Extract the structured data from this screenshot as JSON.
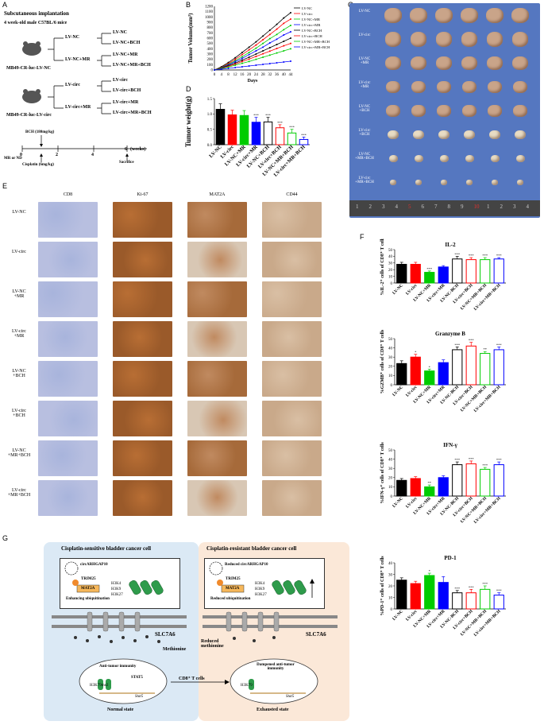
{
  "panel_labels": {
    "A": "A",
    "B": "B",
    "C": "C",
    "D": "D",
    "E": "E",
    "F": "F",
    "G": "G"
  },
  "panelA": {
    "title": "Subcutaneous implantation",
    "mice": "4 week-old male C57BL/6 mice",
    "top_group": "LV-NC",
    "top_group2": "LV-NC+MR",
    "top_branches": [
      "LV-NC",
      "LV-NC+BCH",
      "LV-NC+MR",
      "LV-NC+MR+BCH"
    ],
    "top_model": "MB49-CR-luc-LV-NC",
    "bottom_group": "LV-circ",
    "bottom_group2": "LV-circ+MR",
    "bottom_branches": [
      "LV-circ",
      "LV-circ+BCH",
      "LV-circ+MR",
      "LV-circ+MR+BCH"
    ],
    "bottom_model": "MB49-CR-luc-LV-circ",
    "bch": "BCH (180mg/kg)",
    "timeline_ticks": [
      "0",
      "2",
      "4",
      "6"
    ],
    "weeks": "(weeks)",
    "mr_nd": "MR or ND",
    "cisplatin": "Cisplatin (6mg/kg)",
    "sacrifice": "Sacrifice"
  },
  "chart_data": [
    {
      "id": "tumor-volume",
      "type": "line",
      "ylabel": "Tumor Volume(mm³)",
      "xlabel": "Days",
      "x": [
        0,
        4,
        8,
        12,
        16,
        20,
        24,
        28,
        32,
        36,
        40,
        44
      ],
      "xticks": [
        "0",
        "4",
        "8",
        "12",
        "16",
        "20",
        "24",
        "28",
        "32",
        "36",
        "40",
        "44"
      ],
      "yticks": [
        "0",
        "100",
        "200",
        "300",
        "400",
        "500",
        "600",
        "700",
        "800",
        "900",
        "1000",
        "1100",
        "1200"
      ],
      "ylim": [
        0,
        1200
      ],
      "series": [
        {
          "name": "LV-NC",
          "color": "#000000",
          "values": [
            0,
            60,
            140,
            230,
            330,
            430,
            530,
            640,
            750,
            860,
            980,
            1080
          ]
        },
        {
          "name": "LV-circ",
          "color": "#ff0000",
          "values": [
            0,
            50,
            120,
            200,
            290,
            380,
            470,
            570,
            670,
            770,
            880,
            960
          ]
        },
        {
          "name": "LV-NC+MR",
          "color": "#00cc00",
          "values": [
            0,
            45,
            105,
            175,
            250,
            330,
            410,
            500,
            590,
            670,
            760,
            840
          ]
        },
        {
          "name": "LV-circ+MR",
          "color": "#0000ff",
          "values": [
            0,
            40,
            95,
            155,
            220,
            290,
            360,
            430,
            510,
            580,
            660,
            720
          ]
        },
        {
          "name": "LV-NC+BCH",
          "color": "#000000",
          "values": [
            0,
            35,
            80,
            130,
            185,
            240,
            300,
            360,
            420,
            480,
            540,
            600
          ]
        },
        {
          "name": "LV-circ+BCH",
          "color": "#ff0000",
          "values": [
            0,
            30,
            70,
            110,
            160,
            205,
            255,
            305,
            355,
            405,
            455,
            500
          ]
        },
        {
          "name": "LV-NC+MR+BCH",
          "color": "#00cc00",
          "values": [
            0,
            25,
            55,
            90,
            125,
            160,
            200,
            240,
            280,
            320,
            360,
            400
          ]
        },
        {
          "name": "LV-circ+MR+BCH",
          "color": "#0000ff",
          "values": [
            0,
            15,
            30,
            45,
            60,
            75,
            90,
            105,
            120,
            135,
            150,
            165
          ]
        }
      ]
    },
    {
      "id": "tumor-weight",
      "type": "bar",
      "ylabel": "Tumor weight(g)",
      "categories": [
        "LV-NC",
        "LV-circ",
        "LV-NC+MR",
        "LV-circ+MR",
        "LV-NC+BCH",
        "LV-circ+BCH",
        "LV-NC+MR+BCH",
        "LV-circ+MR+BCH"
      ],
      "values": [
        1.15,
        0.97,
        0.95,
        0.73,
        0.74,
        0.55,
        0.38,
        0.17
      ],
      "errors": [
        0.18,
        0.15,
        0.16,
        0.16,
        0.15,
        0.1,
        0.12,
        0.08
      ],
      "colors": [
        "#000000",
        "#ff0000",
        "#00cc00",
        "#0000ff",
        "#000000",
        "#ff0000",
        "#00cc00",
        "#0000ff"
      ],
      "sig": [
        "",
        "",
        "",
        "***",
        "***",
        "***",
        "***",
        "***"
      ],
      "ylim": [
        0,
        1.5
      ],
      "yticks": [
        "0.0",
        "0.5",
        "1.0",
        "1.5"
      ]
    },
    {
      "id": "il2",
      "type": "bar",
      "title": "IL-2",
      "ylabel": "%IL-2⁺ cells of CD8⁺ T cells",
      "categories": [
        "LV-NC",
        "LV-circ",
        "LV-NC+MR",
        "LV-circ+MR",
        "LV-NC-BCH",
        "LV-circ+BCH",
        "LV-NC+MR+BCH",
        "LV-circ+MR+BCH"
      ],
      "values": [
        28,
        28,
        16,
        24,
        36,
        35,
        35,
        36
      ],
      "errors": [
        3,
        3,
        2,
        2,
        4,
        3,
        3,
        2
      ],
      "colors": [
        "#000000",
        "#ff0000",
        "#00cc00",
        "#0000ff",
        "#000000",
        "#ff0000",
        "#00cc00",
        "#0000ff"
      ],
      "sig": [
        "",
        "",
        "***",
        "",
        "***",
        "***",
        "***",
        "***"
      ],
      "ylim": [
        0,
        50
      ],
      "yticks": [
        "0",
        "10",
        "20",
        "30",
        "40",
        "50"
      ]
    },
    {
      "id": "granzyme",
      "type": "bar",
      "title": "Granzyme B",
      "ylabel": "%GZMB⁺ cells of CD8⁺ T cells",
      "categories": [
        "LV-NC",
        "LV-circ",
        "LV-NC+MR",
        "LV-circ+MR",
        "LV-NC-BCH",
        "LV-circ+BCH",
        "LV-NC+MR+BCH",
        "LV-circ+MR+BCH"
      ],
      "values": [
        23,
        30,
        15,
        24,
        38,
        42,
        34,
        38
      ],
      "errors": [
        3,
        3,
        2,
        3,
        3,
        4,
        2,
        3
      ],
      "colors": [
        "#000000",
        "#ff0000",
        "#00cc00",
        "#0000ff",
        "#000000",
        "#ff0000",
        "#00cc00",
        "#0000ff"
      ],
      "sig": [
        "",
        "*",
        "*",
        "",
        "***",
        "***",
        "**",
        "***"
      ],
      "ylim": [
        0,
        50
      ],
      "yticks": [
        "0",
        "10",
        "20",
        "30",
        "40",
        "50"
      ]
    },
    {
      "id": "ifng",
      "type": "bar",
      "title": "IFN-γ",
      "ylabel": "%IFN-γ⁺ cells of CD8⁺ T cells",
      "categories": [
        "LV-NC",
        "LV-circ",
        "LV-NC+MR",
        "LV-circ+MR",
        "LV-NC-BCH",
        "LV-circ+BCH",
        "LV-NC+MR+BCH",
        "LV-circ+MR+BCH"
      ],
      "values": [
        17,
        19,
        10,
        20,
        34,
        35,
        29,
        34
      ],
      "errors": [
        2,
        2,
        2,
        2,
        3,
        3,
        2,
        3
      ],
      "colors": [
        "#000000",
        "#ff0000",
        "#00cc00",
        "#0000ff",
        "#000000",
        "#ff0000",
        "#00cc00",
        "#0000ff"
      ],
      "sig": [
        "",
        "",
        "**",
        "",
        "***",
        "***",
        "***",
        "***"
      ],
      "ylim": [
        0,
        50
      ],
      "yticks": [
        "0",
        "10",
        "20",
        "30",
        "40",
        "50"
      ]
    },
    {
      "id": "pd1",
      "type": "bar",
      "title": "PD-1",
      "ylabel": "%PD-1⁺ cells of CD8⁺ T cells",
      "categories": [
        "LV-NC",
        "LV-circ",
        "LV-NC+MR",
        "LV-circ+MR",
        "LV-NC-BCH",
        "LV-circ+BCH",
        "LV-NC+MR+BCH",
        "LV-circ+MR+BCH"
      ],
      "values": [
        25,
        22,
        29,
        23,
        14,
        14,
        17,
        12
      ],
      "errors": [
        2,
        2,
        2,
        5,
        2,
        3,
        3,
        2
      ],
      "colors": [
        "#000000",
        "#ff0000",
        "#00cc00",
        "#0000ff",
        "#000000",
        "#ff0000",
        "#00cc00",
        "#0000ff"
      ],
      "sig": [
        "",
        "",
        "*",
        "",
        "***",
        "***",
        "***",
        "***"
      ],
      "ylim": [
        0,
        40
      ],
      "yticks": [
        "0",
        "10",
        "20",
        "30",
        "40"
      ]
    }
  ],
  "panelC": {
    "rows": [
      "LV-NC",
      "LV-circ",
      "LV-NC\n+MR",
      "LV-circ\n+MR",
      "LV-NC\n+BCH",
      "LV-circ\n+BCH",
      "LV-NC\n+MR+BCH",
      "LV-circ\n+MR+BCH"
    ],
    "sizes": [
      1.0,
      0.95,
      0.9,
      0.8,
      0.78,
      0.62,
      0.5,
      0.35
    ],
    "ruler": [
      "1",
      "2",
      "3",
      "4",
      "5",
      "6",
      "7",
      "8",
      "9",
      "10",
      "1",
      "2",
      "3",
      "4"
    ]
  },
  "panelE": {
    "columns": [
      "CD8",
      "Ki-67",
      "MAT2A",
      "CD44"
    ],
    "rows": [
      "LV-NC",
      "LV-circ",
      "LV-NC\n+MR",
      "LV-circ\n+MR",
      "LV-NC\n+BCH",
      "LV-circ\n+BCH",
      "LV-NC\n+MR+BCH",
      "LV-circ\n+MR+BCH"
    ]
  },
  "panelG": {
    "left_title": "Cisplatin-sensitive bladder cancer cell",
    "right_title": "Cisplatin-resistant bladder cancer cell",
    "circ_left": "circARHGAP10",
    "circ_right": "Reduced circARHGAP10",
    "trim": "TRIM25",
    "mat": "MAT2A",
    "ubi_left": "Enhancing ubiquitination",
    "ubi_right": "Reduced ubiquitination",
    "h3": [
      "H3K4",
      "H3K9",
      "H3K27"
    ],
    "slc": "SLC7A6",
    "methionine": "Methionine",
    "reduced_met": "Reduced methionine",
    "immunity_left": "Anti-tumor immunity",
    "immunity_right": "Dampened anti-tumor immunity",
    "stat": "STAT5",
    "h3k79": "H3K79me2",
    "h3k79r": "H3K79",
    "stat5": "Stat5",
    "cd8": "CD8⁺ T cells",
    "normal": "Normal state",
    "exhausted": "Exhausted state"
  }
}
